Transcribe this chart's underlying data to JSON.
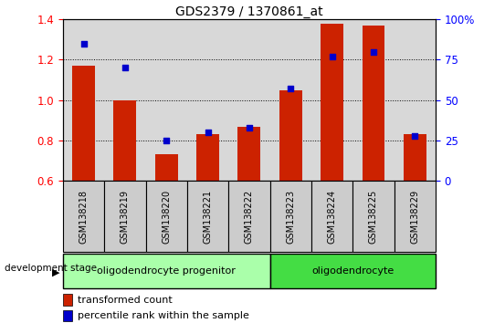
{
  "title": "GDS2379 / 1370861_at",
  "samples": [
    "GSM138218",
    "GSM138219",
    "GSM138220",
    "GSM138221",
    "GSM138222",
    "GSM138223",
    "GSM138224",
    "GSM138225",
    "GSM138229"
  ],
  "transformed_count": [
    1.17,
    1.0,
    0.73,
    0.83,
    0.87,
    1.05,
    1.38,
    1.37,
    0.83
  ],
  "percentile_rank": [
    85,
    70,
    25,
    30,
    33,
    57,
    77,
    80,
    28
  ],
  "ylim_left": [
    0.6,
    1.4
  ],
  "ylim_right": [
    0,
    100
  ],
  "yticks_left": [
    0.6,
    0.8,
    1.0,
    1.2,
    1.4
  ],
  "yticks_right": [
    0,
    25,
    50,
    75,
    100
  ],
  "bar_color": "#cc2200",
  "dot_color": "#0000cc",
  "bar_width": 0.55,
  "grid_color": "black",
  "groups": [
    {
      "label": "oligodendrocyte progenitor",
      "start": 0,
      "end": 5,
      "color": "#aaffaa"
    },
    {
      "label": "oligodendrocyte",
      "start": 5,
      "end": 9,
      "color": "#44dd44"
    }
  ],
  "legend_bar_label": "transformed count",
  "legend_dot_label": "percentile rank within the sample",
  "dev_stage_label": "development stage",
  "background_color": "#ffffff",
  "plot_bg_color": "#d8d8d8",
  "label_bg_color": "#cccccc"
}
